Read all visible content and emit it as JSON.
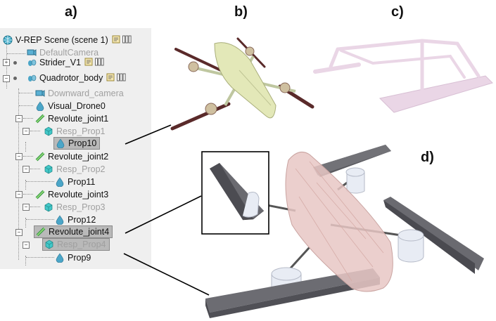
{
  "labels": {
    "a": "a)",
    "b": "b)",
    "c": "c)",
    "d": "d)"
  },
  "tree": {
    "items": [
      {
        "label": "V-REP Scene (scene 1)",
        "icon": "globe-icon"
      },
      {
        "label": "DefaultCamera",
        "icon": "camera-icon"
      },
      {
        "label": "Strider_V1",
        "icon": "shape-group-icon"
      },
      {
        "label": "Quadrotor_body",
        "icon": "shape-group-icon"
      },
      {
        "label": "Downward_camera",
        "icon": "camera-icon"
      },
      {
        "label": "Visual_Drone0",
        "icon": "shape-icon"
      },
      {
        "label": "Revolute_joint1",
        "icon": "joint-icon"
      },
      {
        "label": "Resp_Prop1",
        "icon": "cube-icon"
      },
      {
        "label": "Prop10",
        "icon": "shape-icon"
      },
      {
        "label": "Revolute_joint2",
        "icon": "joint-icon"
      },
      {
        "label": "Resp_Prop2",
        "icon": "cube-icon"
      },
      {
        "label": "Prop11",
        "icon": "shape-icon"
      },
      {
        "label": "Revolute_joint3",
        "icon": "joint-icon"
      },
      {
        "label": "Resp_Prop3",
        "icon": "cube-icon"
      },
      {
        "label": "Prop12",
        "icon": "shape-icon"
      },
      {
        "label": "Revolute_joint4",
        "icon": "joint-icon"
      },
      {
        "label": "Resp_Prop4",
        "icon": "cube-icon"
      },
      {
        "label": "Prop9",
        "icon": "shape-icon"
      }
    ]
  },
  "colors": {
    "panel_bg": "#efefef",
    "hull_pink": "#e8c7c4",
    "bar_gray": "#5a5a5f",
    "drone_green": "#e3e8b8",
    "rotor_brown": "#5a2a2a",
    "strider_pink": "#ead6e6"
  }
}
